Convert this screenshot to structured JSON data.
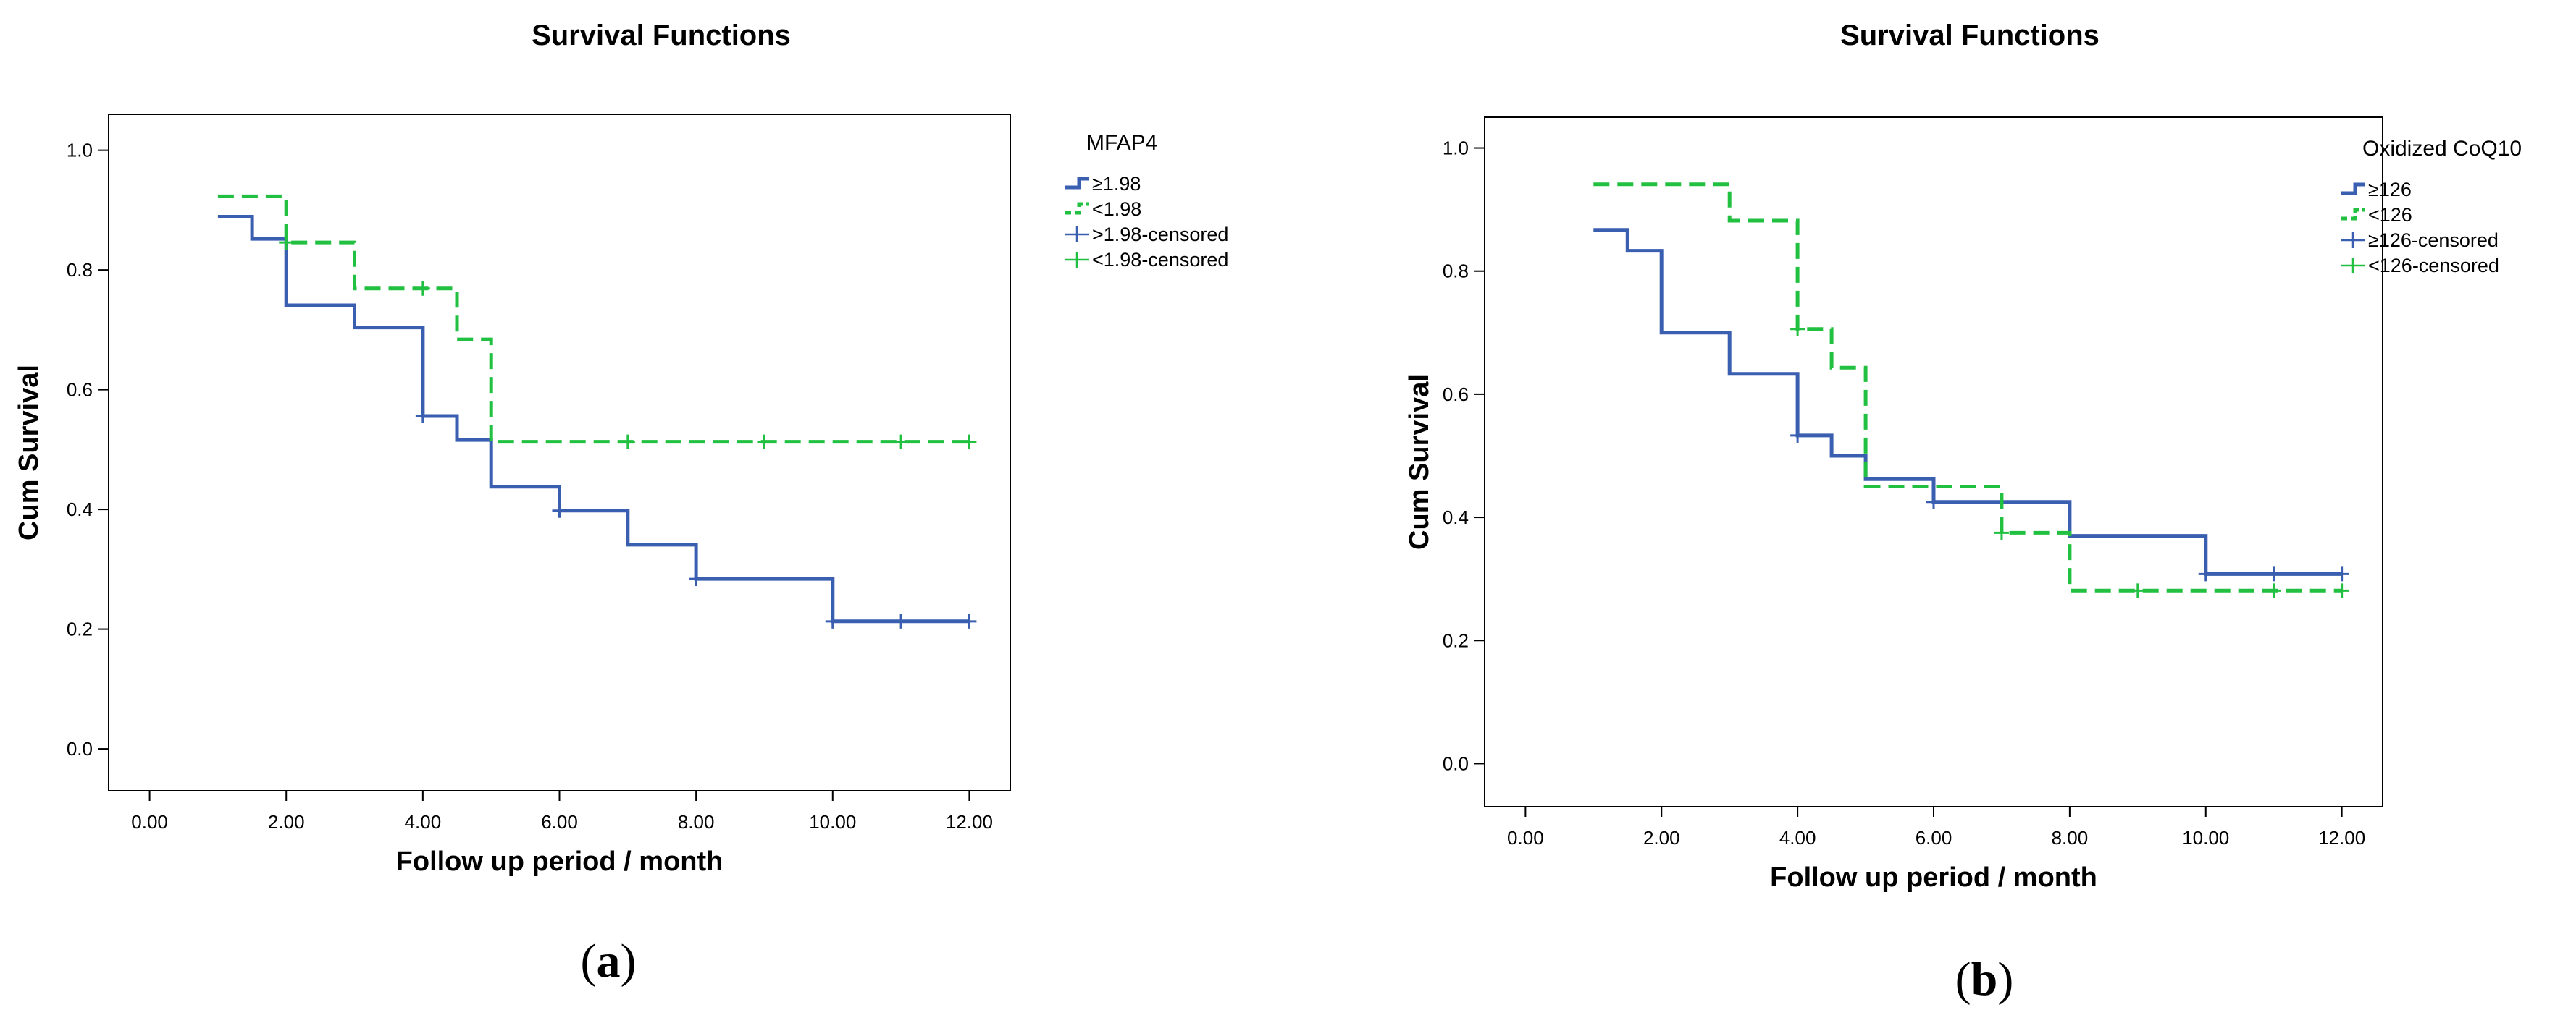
{
  "chart_data": [
    {
      "type": "line",
      "panel": "a",
      "title": "Survival Functions",
      "xlabel": "Follow up period / month",
      "ylabel": "Cum Survival",
      "xlim": [
        -0.6,
        12.6
      ],
      "ylim": [
        -0.07,
        1.06
      ],
      "xticks": [
        0,
        2,
        4,
        6,
        8,
        10,
        12
      ],
      "xtick_labels": [
        "0.00",
        "2.00",
        "4.00",
        "6.00",
        "8.00",
        "10.00",
        "12.00"
      ],
      "yticks": [
        0,
        0.2,
        0.4,
        0.6,
        0.8,
        1.0
      ],
      "ytick_labels": [
        "0.0",
        "0.2",
        "0.4",
        "0.6",
        "0.8",
        "1.0"
      ],
      "legend_title": "MFAP4",
      "legend_position": "right",
      "legend": [
        {
          "label": "≥1.98",
          "kind": "line",
          "color": "#3a5fb0",
          "dash": false
        },
        {
          "label": "<1.98",
          "kind": "line",
          "color": "#22c040",
          "dash": true
        },
        {
          "label": ">1.98-censored",
          "kind": "censor",
          "color": "#3a5fb0"
        },
        {
          "label": "<1.98-censored",
          "kind": "censor",
          "color": "#22c040"
        }
      ],
      "series": [
        {
          "name": "≥1.98",
          "color": "#3a5fb0",
          "dash": false,
          "steps": [
            [
              1,
              0.889
            ],
            [
              1.5,
              0.852
            ],
            [
              2,
              0.741
            ],
            [
              3,
              0.704
            ],
            [
              4,
              0.556
            ],
            [
              4.5,
              0.516
            ],
            [
              5,
              0.438
            ],
            [
              6,
              0.398
            ],
            [
              7,
              0.341
            ],
            [
              8,
              0.284
            ],
            [
              10,
              0.213
            ]
          ],
          "end_x": 12,
          "censored": [
            [
              4,
              0.556
            ],
            [
              6,
              0.398
            ],
            [
              8,
              0.284
            ],
            [
              10,
              0.213
            ],
            [
              11,
              0.213
            ],
            [
              12,
              0.213
            ]
          ]
        },
        {
          "name": "<1.98",
          "color": "#22c040",
          "dash": true,
          "steps": [
            [
              1,
              0.923
            ],
            [
              2,
              0.846
            ],
            [
              3,
              0.769
            ],
            [
              4.5,
              0.684
            ],
            [
              5,
              0.513
            ]
          ],
          "end_x": 12,
          "censored": [
            [
              2,
              0.846
            ],
            [
              4,
              0.769
            ],
            [
              7,
              0.513
            ],
            [
              9,
              0.513
            ],
            [
              11,
              0.513
            ],
            [
              12,
              0.513
            ]
          ]
        }
      ]
    },
    {
      "type": "line",
      "panel": "b",
      "title": "Survival Functions",
      "xlabel": "Follow up period / month",
      "ylabel": "Cum Survival",
      "xlim": [
        -0.6,
        12.6
      ],
      "ylim": [
        -0.07,
        1.05
      ],
      "xticks": [
        0,
        2,
        4,
        6,
        8,
        10,
        12
      ],
      "xtick_labels": [
        "0.00",
        "2.00",
        "4.00",
        "6.00",
        "8.00",
        "10.00",
        "12.00"
      ],
      "yticks": [
        0,
        0.2,
        0.4,
        0.6,
        0.8,
        1.0
      ],
      "ytick_labels": [
        "0.0",
        "0.2",
        "0.4",
        "0.6",
        "0.8",
        "1.0"
      ],
      "legend_title": "Oxidized CoQ10",
      "legend_position": "right",
      "legend": [
        {
          "label": "≥126",
          "kind": "line",
          "color": "#3a5fb0",
          "dash": false
        },
        {
          "label": "<126",
          "kind": "line",
          "color": "#22c040",
          "dash": true
        },
        {
          "label": "≥126-censored",
          "kind": "censor",
          "color": "#3a5fb0"
        },
        {
          "label": "<126-censored",
          "kind": "censor",
          "color": "#22c040"
        }
      ],
      "series": [
        {
          "name": "≥126",
          "color": "#3a5fb0",
          "dash": false,
          "steps": [
            [
              1,
              0.867
            ],
            [
              1.5,
              0.833
            ],
            [
              2,
              0.7
            ],
            [
              3,
              0.633
            ],
            [
              4,
              0.533
            ],
            [
              4.5,
              0.5
            ],
            [
              5,
              0.462
            ],
            [
              6,
              0.425
            ],
            [
              8,
              0.37
            ],
            [
              10,
              0.308
            ]
          ],
          "end_x": 12,
          "censored": [
            [
              4,
              0.533
            ],
            [
              6,
              0.425
            ],
            [
              10,
              0.308
            ],
            [
              11,
              0.308
            ],
            [
              12,
              0.308
            ]
          ]
        },
        {
          "name": "<126",
          "color": "#22c040",
          "dash": true,
          "steps": [
            [
              1,
              0.941
            ],
            [
              3,
              0.882
            ],
            [
              4,
              0.706
            ],
            [
              4.5,
              0.643
            ],
            [
              5,
              0.45
            ],
            [
              7,
              0.375
            ],
            [
              8,
              0.281
            ]
          ],
          "end_x": 12,
          "censored": [
            [
              4,
              0.706
            ],
            [
              7,
              0.375
            ],
            [
              9,
              0.281
            ],
            [
              11,
              0.281
            ],
            [
              12,
              0.281
            ]
          ]
        }
      ]
    }
  ],
  "panel_labels": [
    "a",
    "b"
  ]
}
